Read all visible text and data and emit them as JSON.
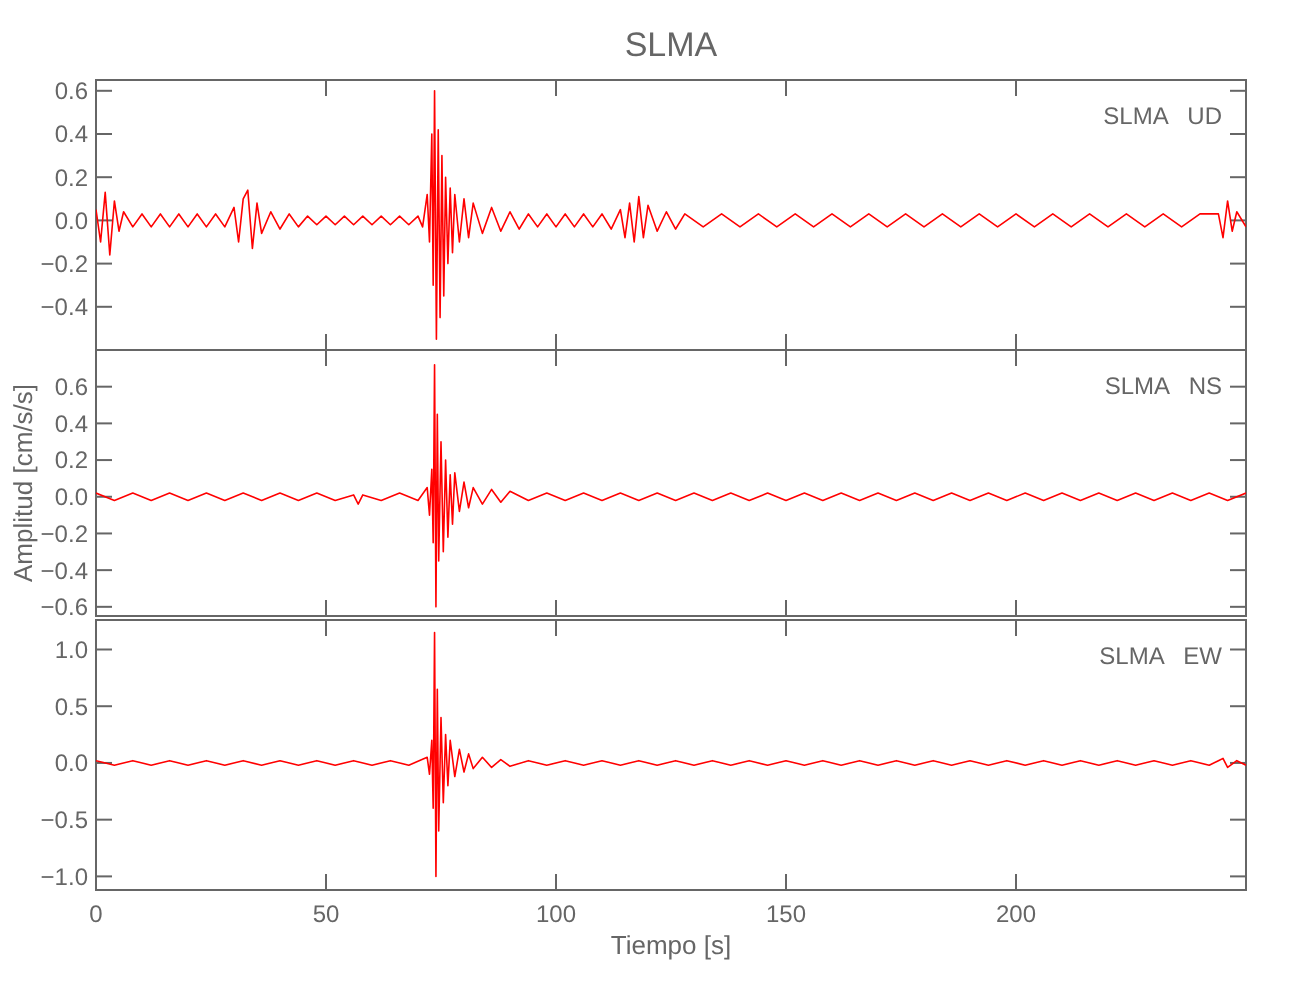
{
  "chart_data": [
    {
      "type": "line",
      "title": "SLMA",
      "annotations": [
        "SLMA   UD"
      ],
      "xlim": [
        0,
        250
      ],
      "xticks": [
        0,
        50,
        100,
        150,
        200
      ],
      "ylim": [
        -0.6,
        0.65
      ],
      "yticks": [
        -0.4,
        -0.2,
        {
          "value": 0,
          "label": "0.0"
        },
        0.2,
        0.4,
        0.6
      ],
      "tick_labels": "y",
      "grid": false,
      "series": [
        {
          "color": "#ff0000",
          "x": [
            0,
            1,
            2,
            3,
            4,
            5,
            6,
            8,
            10,
            12,
            14,
            16,
            18,
            20,
            22,
            24,
            26,
            28,
            30,
            31,
            32,
            33,
            34,
            35,
            36,
            38,
            40,
            42,
            44,
            46,
            48,
            50,
            52,
            54,
            56,
            58,
            60,
            62,
            64,
            66,
            68,
            70,
            71,
            72,
            72.5,
            73,
            73.3,
            73.6,
            74,
            74.4,
            74.8,
            75.2,
            75.6,
            76,
            76.5,
            77,
            77.5,
            78,
            79,
            80,
            81,
            82,
            84,
            86,
            88,
            90,
            92,
            94,
            96,
            98,
            100,
            102,
            104,
            106,
            108,
            110,
            112,
            114,
            115,
            116,
            117,
            118,
            119,
            120,
            122,
            124,
            126,
            128,
            132,
            136,
            140,
            144,
            148,
            152,
            156,
            160,
            164,
            168,
            172,
            176,
            180,
            184,
            188,
            192,
            196,
            200,
            204,
            208,
            212,
            216,
            220,
            224,
            228,
            232,
            236,
            240,
            244,
            245,
            246,
            247,
            248,
            250
          ],
          "values": [
            0.05,
            -0.1,
            0.13,
            -0.16,
            0.09,
            -0.05,
            0.04,
            -0.03,
            0.03,
            -0.03,
            0.03,
            -0.03,
            0.03,
            -0.03,
            0.03,
            -0.03,
            0.03,
            -0.03,
            0.06,
            -0.1,
            0.1,
            0.14,
            -0.13,
            0.08,
            -0.06,
            0.04,
            -0.04,
            0.03,
            -0.03,
            0.02,
            -0.02,
            0.02,
            -0.02,
            0.02,
            -0.02,
            0.02,
            -0.02,
            0.02,
            -0.02,
            0.02,
            -0.02,
            0.02,
            -0.03,
            0.12,
            -0.1,
            0.4,
            -0.3,
            0.6,
            -0.55,
            0.42,
            -0.45,
            0.3,
            -0.35,
            0.2,
            -0.2,
            0.15,
            -0.15,
            0.12,
            -0.1,
            0.1,
            -0.08,
            0.08,
            -0.06,
            0.06,
            -0.05,
            0.04,
            -0.04,
            0.03,
            -0.03,
            0.03,
            -0.03,
            0.03,
            -0.03,
            0.03,
            -0.03,
            0.03,
            -0.04,
            0.05,
            -0.08,
            0.08,
            -0.1,
            0.11,
            -0.08,
            0.07,
            -0.05,
            0.04,
            -0.04,
            0.03,
            -0.03,
            0.03,
            -0.03,
            0.03,
            -0.03,
            0.03,
            -0.03,
            0.03,
            -0.03,
            0.03,
            -0.03,
            0.03,
            -0.03,
            0.03,
            -0.03,
            0.03,
            -0.03,
            0.03,
            -0.03,
            0.03,
            -0.03,
            0.03,
            -0.03,
            0.03,
            -0.03,
            0.03,
            -0.03,
            0.03,
            0.03,
            -0.08,
            0.09,
            -0.05,
            0.04,
            -0.03
          ]
        }
      ]
    },
    {
      "type": "line",
      "ylabel": "Amplitud [cm/s/s]",
      "annotations": [
        "SLMA   NS"
      ],
      "xlim": [
        0,
        250
      ],
      "xticks": [
        0,
        50,
        100,
        150,
        200
      ],
      "ylim": [
        -0.65,
        0.8
      ],
      "yticks": [
        -0.6,
        -0.4,
        -0.2,
        {
          "value": 0,
          "label": "0.0"
        },
        0.2,
        0.4,
        0.6
      ],
      "tick_labels": "y",
      "grid": false,
      "series": [
        {
          "color": "#ff0000",
          "x": [
            0,
            4,
            8,
            12,
            16,
            20,
            24,
            28,
            32,
            36,
            40,
            44,
            48,
            52,
            56,
            57,
            58,
            62,
            66,
            70,
            72,
            72.5,
            73,
            73.3,
            73.6,
            73.9,
            74.2,
            74.5,
            75,
            75.5,
            76,
            76.5,
            77,
            77.5,
            78,
            79,
            80,
            81,
            82,
            84,
            86,
            88,
            90,
            94,
            98,
            102,
            106,
            110,
            114,
            118,
            122,
            126,
            130,
            134,
            138,
            142,
            146,
            150,
            154,
            158,
            162,
            166,
            170,
            174,
            178,
            182,
            186,
            190,
            194,
            198,
            202,
            206,
            210,
            214,
            218,
            222,
            226,
            230,
            234,
            238,
            242,
            246,
            250
          ],
          "values": [
            0.02,
            -0.02,
            0.02,
            -0.02,
            0.02,
            -0.02,
            0.02,
            -0.02,
            0.02,
            -0.02,
            0.02,
            -0.02,
            0.02,
            -0.02,
            0.01,
            -0.04,
            0.01,
            -0.02,
            0.02,
            -0.02,
            0.05,
            -0.1,
            0.15,
            -0.25,
            0.72,
            -0.6,
            0.45,
            -0.35,
            0.3,
            -0.3,
            0.2,
            -0.22,
            0.12,
            -0.15,
            0.13,
            -0.08,
            0.08,
            -0.06,
            0.05,
            -0.04,
            0.04,
            -0.03,
            0.03,
            -0.02,
            0.02,
            -0.02,
            0.02,
            -0.02,
            0.02,
            -0.02,
            0.02,
            -0.02,
            0.02,
            -0.02,
            0.02,
            -0.02,
            0.02,
            -0.02,
            0.02,
            -0.02,
            0.02,
            -0.02,
            0.02,
            -0.02,
            0.02,
            -0.02,
            0.02,
            -0.02,
            0.02,
            -0.02,
            0.02,
            -0.02,
            0.02,
            -0.02,
            0.02,
            -0.02,
            0.02,
            -0.02,
            0.02,
            -0.02,
            0.02,
            -0.02,
            0.02
          ]
        }
      ]
    },
    {
      "type": "line",
      "xlabel": "Tiempo [s]",
      "annotations": [
        "SLMA   EW"
      ],
      "xlim": [
        0,
        250
      ],
      "xticks": [
        0,
        50,
        100,
        150,
        200
      ],
      "ylim": [
        -1.12,
        1.26
      ],
      "yticks": [
        {
          "value": -1,
          "label": "−1.0"
        },
        -0.5,
        {
          "value": 0,
          "label": "0.0"
        },
        0.5,
        {
          "value": 1,
          "label": "1.0"
        }
      ],
      "grid": false,
      "series": [
        {
          "color": "#ff0000",
          "x": [
            0,
            4,
            8,
            12,
            16,
            20,
            24,
            28,
            32,
            36,
            40,
            44,
            48,
            52,
            56,
            60,
            64,
            68,
            72,
            72.5,
            73,
            73.3,
            73.6,
            73.9,
            74.2,
            74.5,
            75,
            75.5,
            76,
            76.5,
            77,
            78,
            79,
            80,
            81,
            82,
            84,
            86,
            88,
            90,
            94,
            98,
            102,
            106,
            110,
            114,
            118,
            122,
            126,
            130,
            134,
            138,
            142,
            146,
            150,
            154,
            158,
            162,
            166,
            170,
            174,
            178,
            182,
            186,
            190,
            194,
            198,
            202,
            206,
            210,
            214,
            218,
            222,
            226,
            230,
            234,
            238,
            242,
            244,
            245,
            246,
            248,
            250
          ],
          "values": [
            0.02,
            -0.02,
            0.02,
            -0.02,
            0.02,
            -0.02,
            0.02,
            -0.02,
            0.02,
            -0.02,
            0.02,
            -0.02,
            0.02,
            -0.02,
            0.02,
            -0.02,
            0.02,
            -0.02,
            0.05,
            -0.1,
            0.2,
            -0.4,
            1.15,
            -1.0,
            0.65,
            -0.6,
            0.4,
            -0.35,
            0.25,
            -0.2,
            0.2,
            -0.12,
            0.12,
            -0.08,
            0.08,
            -0.05,
            0.05,
            -0.04,
            0.03,
            -0.03,
            0.02,
            -0.02,
            0.02,
            -0.02,
            0.02,
            -0.02,
            0.02,
            -0.02,
            0.02,
            -0.02,
            0.02,
            -0.02,
            0.02,
            -0.02,
            0.02,
            -0.02,
            0.02,
            -0.02,
            0.02,
            -0.02,
            0.02,
            -0.02,
            0.02,
            -0.02,
            0.02,
            -0.02,
            0.02,
            -0.02,
            0.02,
            -0.02,
            0.02,
            -0.02,
            0.02,
            -0.02,
            0.02,
            -0.02,
            0.02,
            -0.02,
            0.02,
            0.04,
            -0.04,
            0.02,
            -0.02
          ]
        }
      ]
    }
  ]
}
